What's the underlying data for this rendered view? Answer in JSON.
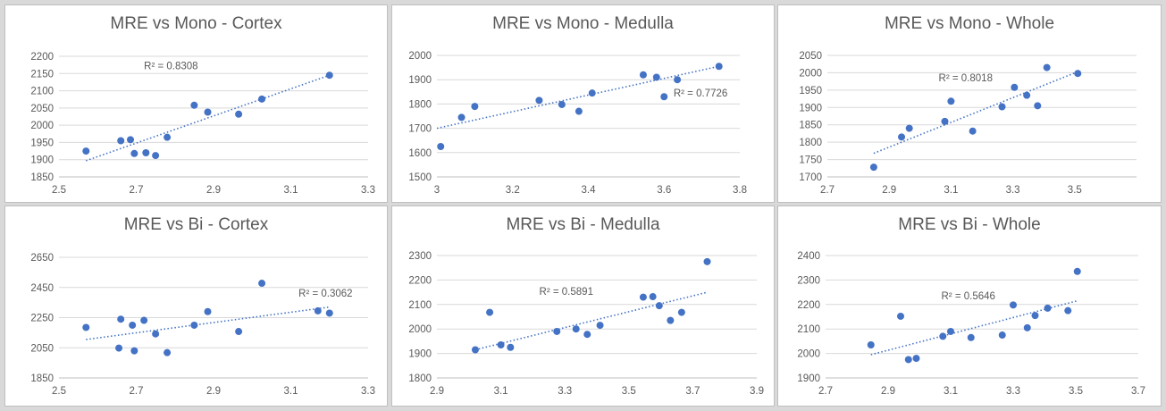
{
  "colors": {
    "point": "#4472c4",
    "trend": "#4472c4",
    "grid": "#d9d9d9",
    "text": "#595959"
  },
  "chart_data": [
    {
      "type": "scatter",
      "title": "MRE vs Mono - Cortex",
      "xlim": [
        2.5,
        3.3
      ],
      "xticks": [
        "2.5",
        "2.7",
        "2.9",
        "3.1",
        "3.3"
      ],
      "ylim": [
        1850,
        2200
      ],
      "yticks": [
        "1850",
        "1900",
        "1950",
        "2000",
        "2050",
        "2100",
        "2150",
        "2200"
      ],
      "x": [
        2.57,
        2.66,
        2.685,
        2.695,
        2.725,
        2.75,
        2.78,
        2.85,
        2.885,
        2.965,
        3.025,
        3.2
      ],
      "y": [
        1925,
        1955,
        1958,
        1918,
        1920,
        1912,
        1965,
        2058,
        2038,
        2032,
        2076,
        2145
      ],
      "trendline": {
        "x": [
          2.57,
          3.2
        ],
        "y": [
          1897,
          2145
        ]
      },
      "r2": "R² = 0.8308",
      "r2_at": [
        2.72,
        2163
      ]
    },
    {
      "type": "scatter",
      "title": "MRE vs Mono - Medulla",
      "xlim": [
        3.0,
        3.8
      ],
      "xticks": [
        "3",
        "3.2",
        "3.4",
        "3.6",
        "3.8"
      ],
      "ylim": [
        1500,
        2000
      ],
      "yticks": [
        "1500",
        "1600",
        "1700",
        "1800",
        "1900",
        "2000"
      ],
      "x": [
        3.01,
        3.065,
        3.1,
        3.27,
        3.33,
        3.375,
        3.41,
        3.545,
        3.58,
        3.6,
        3.635,
        3.745
      ],
      "y": [
        1625,
        1745,
        1790,
        1815,
        1798,
        1770,
        1845,
        1920,
        1910,
        1830,
        1900,
        1955
      ],
      "trendline": {
        "x": [
          3.0,
          3.745
        ],
        "y": [
          1700,
          1955
        ]
      },
      "r2": "R² = 0.7726",
      "r2_at": [
        3.625,
        1830
      ]
    },
    {
      "type": "scatter",
      "title": "MRE vs Mono - Whole",
      "xlim": [
        2.7,
        3.7
      ],
      "xticks": [
        "2.7",
        "2.9",
        "3.1",
        "3.3",
        "3.5"
      ],
      "ylim": [
        1700,
        2050
      ],
      "yticks": [
        "1700",
        "1750",
        "1800",
        "1850",
        "1900",
        "1950",
        "2000",
        "2050"
      ],
      "x": [
        2.85,
        2.94,
        2.965,
        3.08,
        3.1,
        3.17,
        3.265,
        3.305,
        3.345,
        3.38,
        3.41,
        3.51
      ],
      "y": [
        1728,
        1815,
        1840,
        1860,
        1918,
        1832,
        1902,
        1958,
        1935,
        1905,
        2015,
        1998
      ],
      "trendline": {
        "x": [
          2.85,
          3.51
        ],
        "y": [
          1768,
          2003
        ]
      },
      "r2": "R² = 0.8018",
      "r2_at": [
        3.06,
        1975
      ]
    },
    {
      "type": "scatter",
      "title": "MRE vs Bi - Cortex",
      "xlim": [
        2.5,
        3.3
      ],
      "xticks": [
        "2.5",
        "2.7",
        "2.9",
        "3.1",
        "3.3"
      ],
      "ylim": [
        1850,
        2650
      ],
      "yticks": [
        "1850",
        "2050",
        "2250",
        "2450",
        "2650"
      ],
      "x": [
        2.57,
        2.655,
        2.66,
        2.69,
        2.695,
        2.72,
        2.75,
        2.78,
        2.85,
        2.885,
        2.965,
        3.025,
        3.17,
        3.2
      ],
      "y": [
        2185,
        2048,
        2240,
        2200,
        2030,
        2232,
        2142,
        2018,
        2200,
        2290,
        2158,
        2478,
        2295,
        2280
      ],
      "trendline": {
        "x": [
          2.57,
          3.2
        ],
        "y": [
          2105,
          2320
        ]
      },
      "r2": "R² = 0.3062",
      "r2_at": [
        3.12,
        2390
      ]
    },
    {
      "type": "scatter",
      "title": "MRE vs Bi - Medulla",
      "xlim": [
        2.9,
        3.9
      ],
      "xticks": [
        "2.9",
        "3.1",
        "3.3",
        "3.5",
        "3.7",
        "3.9"
      ],
      "ylim": [
        1800,
        2300
      ],
      "yticks": [
        "1800",
        "1900",
        "2000",
        "2100",
        "2200",
        "2300"
      ],
      "x": [
        3.02,
        3.065,
        3.1,
        3.13,
        3.275,
        3.335,
        3.37,
        3.41,
        3.545,
        3.575,
        3.595,
        3.63,
        3.665,
        3.745
      ],
      "y": [
        1915,
        2068,
        1935,
        1925,
        1990,
        2000,
        1978,
        2015,
        2130,
        2132,
        2095,
        2035,
        2068,
        2275
      ],
      "trendline": {
        "x": [
          3.02,
          3.745
        ],
        "y": [
          1915,
          2150
        ]
      },
      "r2": "R² = 0.5891",
      "r2_at": [
        3.22,
        2140
      ]
    },
    {
      "type": "scatter",
      "title": "MRE vs Bi - Whole",
      "xlim": [
        2.7,
        3.7
      ],
      "xticks": [
        "2.7",
        "2.9",
        "3.1",
        "3.3",
        "3.5",
        "3.7"
      ],
      "ylim": [
        1900,
        2400
      ],
      "yticks": [
        "1900",
        "2000",
        "2100",
        "2200",
        "2300",
        "2400"
      ],
      "x": [
        2.845,
        2.94,
        2.965,
        2.99,
        3.075,
        3.1,
        3.165,
        3.265,
        3.3,
        3.345,
        3.37,
        3.41,
        3.475,
        3.505
      ],
      "y": [
        2035,
        2152,
        1975,
        1980,
        2070,
        2090,
        2065,
        2075,
        2198,
        2105,
        2155,
        2185,
        2175,
        2335
      ],
      "trendline": {
        "x": [
          2.845,
          3.505
        ],
        "y": [
          1995,
          2215
        ]
      },
      "r2": "R² = 0.5646",
      "r2_at": [
        3.07,
        2222
      ]
    }
  ]
}
